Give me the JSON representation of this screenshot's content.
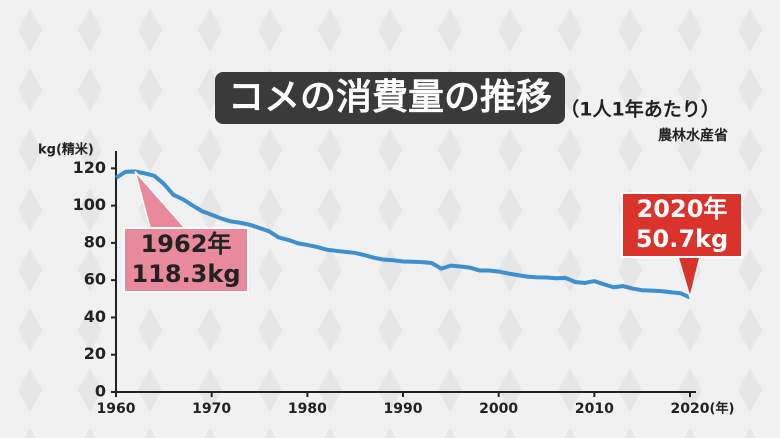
{
  "chart_data": {
    "type": "line",
    "title": "コメの消費量の推移",
    "subtitle": "（1人1年あたり）",
    "source": "農林水産省",
    "y_label": "kg(精米)",
    "x_label": "(年)",
    "x": [
      1960,
      1961,
      1962,
      1963,
      1964,
      1965,
      1966,
      1967,
      1968,
      1969,
      1970,
      1971,
      1972,
      1973,
      1974,
      1975,
      1976,
      1977,
      1978,
      1979,
      1980,
      1981,
      1982,
      1983,
      1984,
      1985,
      1986,
      1987,
      1988,
      1989,
      1990,
      1991,
      1992,
      1993,
      1994,
      1995,
      1996,
      1997,
      1998,
      1999,
      2000,
      2001,
      2002,
      2003,
      2004,
      2005,
      2006,
      2007,
      2008,
      2009,
      2010,
      2011,
      2012,
      2013,
      2014,
      2015,
      2016,
      2017,
      2018,
      2019,
      2020
    ],
    "series": [
      {
        "name": "コメの消費量",
        "color": "#3d8fd0",
        "values": [
          114.9,
          118.1,
          118.3,
          117.3,
          116.0,
          111.7,
          105.8,
          103.4,
          100.1,
          97.0,
          95.1,
          93.1,
          91.5,
          90.8,
          89.7,
          88.0,
          86.2,
          82.9,
          81.6,
          79.8,
          78.9,
          77.8,
          76.4,
          75.7,
          75.2,
          74.6,
          73.4,
          72.0,
          71.0,
          70.7,
          70.0,
          69.9,
          69.7,
          69.2,
          66.2,
          67.8,
          67.3,
          66.7,
          65.2,
          65.2,
          64.6,
          63.6,
          62.7,
          61.9,
          61.5,
          61.4,
          61.0,
          61.2,
          59.0,
          58.5,
          59.5,
          57.8,
          56.2,
          56.8,
          55.5,
          54.6,
          54.4,
          54.1,
          53.5,
          53.0,
          50.7
        ]
      }
    ],
    "annotations": [
      [
        "1962年",
        "118.3kg"
      ],
      [
        "2020年",
        "50.7kg"
      ]
    ],
    "xlim": [
      1960,
      2020
    ],
    "ylim": [
      0,
      125
    ],
    "xticks": [
      1960,
      1970,
      1980,
      1990,
      2000,
      2010,
      2020
    ],
    "yticks": [
      0,
      20,
      40,
      60,
      80,
      100,
      120
    ]
  }
}
